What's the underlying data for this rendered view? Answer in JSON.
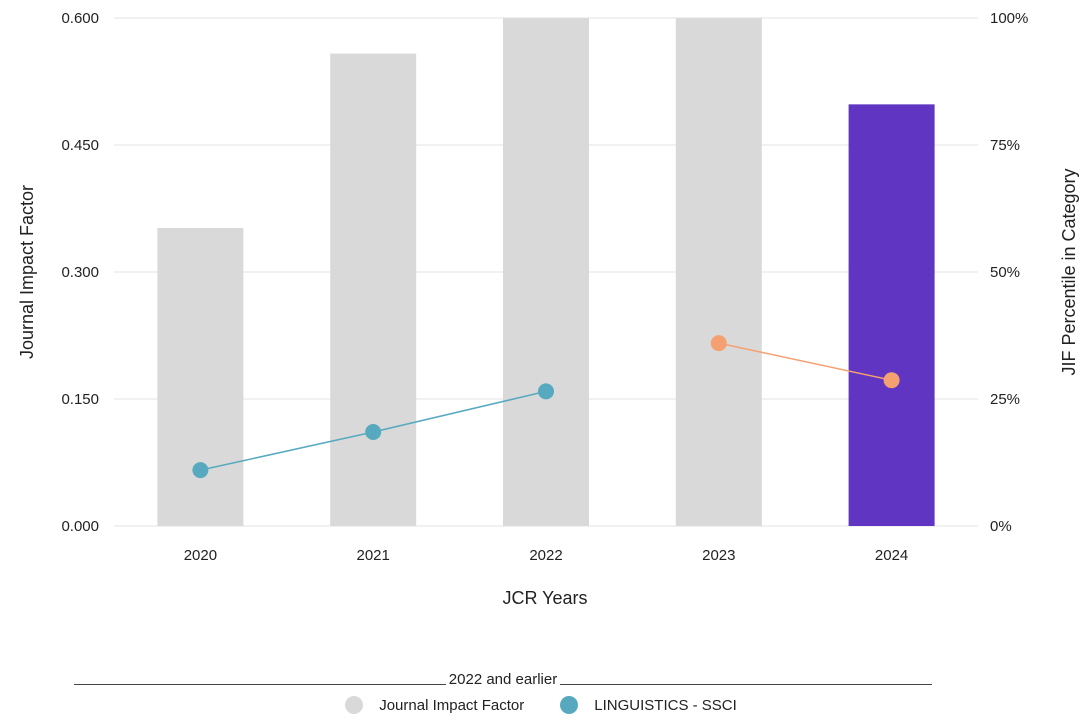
{
  "chart_data": {
    "type": "bar",
    "categories": [
      "2020",
      "2021",
      "2022",
      "2023",
      "2024"
    ],
    "xlabel": "JCR Years",
    "ylabel": "Journal Impact Factor",
    "y2label": "JIF Percentile in Category",
    "ylim": [
      0,
      0.6
    ],
    "y2lim": [
      0,
      100
    ],
    "y_ticks": [
      "0.000",
      "0.150",
      "0.300",
      "0.450",
      "0.600"
    ],
    "y2_ticks": [
      "0%",
      "25%",
      "50%",
      "75%",
      "100%"
    ],
    "grid": true,
    "bars": {
      "name": "Journal Impact Factor",
      "values": [
        0.352,
        0.558,
        0.6,
        0.6,
        0.498
      ],
      "colors": [
        "#d9d9d9",
        "#d9d9d9",
        "#d9d9d9",
        "#d9d9d9",
        "#5f35c2"
      ]
    },
    "lines": [
      {
        "name": "LINGUISTICS - SSCI",
        "axis": "right",
        "color": "#57a9bf",
        "points": [
          {
            "x": "2020",
            "y": 11
          },
          {
            "x": "2021",
            "y": 18.5
          },
          {
            "x": "2022",
            "y": 26.5
          }
        ]
      },
      {
        "name": "",
        "axis": "right",
        "color": "#f5a070",
        "points": [
          {
            "x": "2023",
            "y": 36
          },
          {
            "x": "2024",
            "y": 28.7
          }
        ]
      }
    ]
  },
  "legend": {
    "separator_label": "2022 and earlier",
    "items": [
      {
        "label": "Journal Impact Factor",
        "color": "#d9d9d9"
      },
      {
        "label": "LINGUISTICS - SSCI",
        "color": "#57a9bf"
      }
    ]
  }
}
